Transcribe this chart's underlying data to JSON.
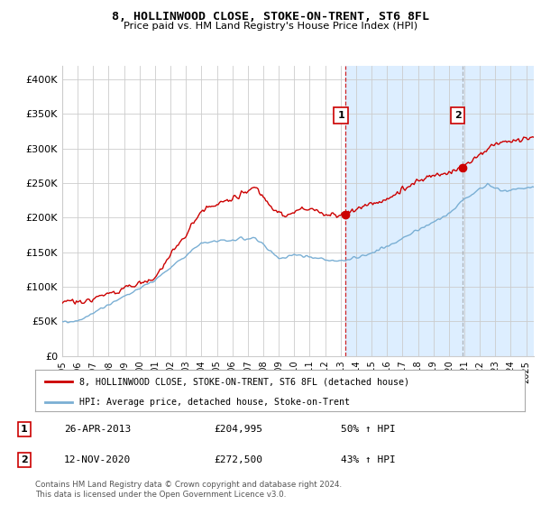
{
  "title": "8, HOLLINWOOD CLOSE, STOKE-ON-TRENT, ST6 8FL",
  "subtitle": "Price paid vs. HM Land Registry's House Price Index (HPI)",
  "legend_line1": "8, HOLLINWOOD CLOSE, STOKE-ON-TRENT, ST6 8FL (detached house)",
  "legend_line2": "HPI: Average price, detached house, Stoke-on-Trent",
  "annotation1_label": "1",
  "annotation1_date": "26-APR-2013",
  "annotation1_price": "£204,995",
  "annotation1_hpi": "50% ↑ HPI",
  "annotation2_label": "2",
  "annotation2_date": "12-NOV-2020",
  "annotation2_price": "£272,500",
  "annotation2_hpi": "43% ↑ HPI",
  "footnote": "Contains HM Land Registry data © Crown copyright and database right 2024.\nThis data is licensed under the Open Government Licence v3.0.",
  "red_color": "#cc0000",
  "blue_color": "#7aafd4",
  "vline1_color": "#cc0000",
  "vline2_color": "#999999",
  "background_color": "#ffffff",
  "grid_color": "#cccccc",
  "annotation_box_edgecolor": "#cc0000",
  "annotation_box_facecolor": "#ffffff",
  "span_color": "#ddeeff",
  "xlim_start": 1995.0,
  "xlim_end": 2025.5,
  "ylim_bottom": 0,
  "ylim_top": 420000,
  "purchase1_x": 2013.32,
  "purchase1_y": 204995,
  "purchase2_x": 2020.87,
  "purchase2_y": 272500,
  "yticks": [
    0,
    50000,
    100000,
    150000,
    200000,
    250000,
    300000,
    350000,
    400000
  ],
  "ytick_labels": [
    "£0",
    "£50K",
    "£100K",
    "£150K",
    "£200K",
    "£250K",
    "£300K",
    "£350K",
    "£400K"
  ],
  "xtick_years": [
    1995,
    1996,
    1997,
    1998,
    1999,
    2000,
    2001,
    2002,
    2003,
    2004,
    2005,
    2006,
    2007,
    2008,
    2009,
    2010,
    2011,
    2012,
    2013,
    2014,
    2015,
    2016,
    2017,
    2018,
    2019,
    2020,
    2021,
    2022,
    2023,
    2024,
    2025
  ]
}
